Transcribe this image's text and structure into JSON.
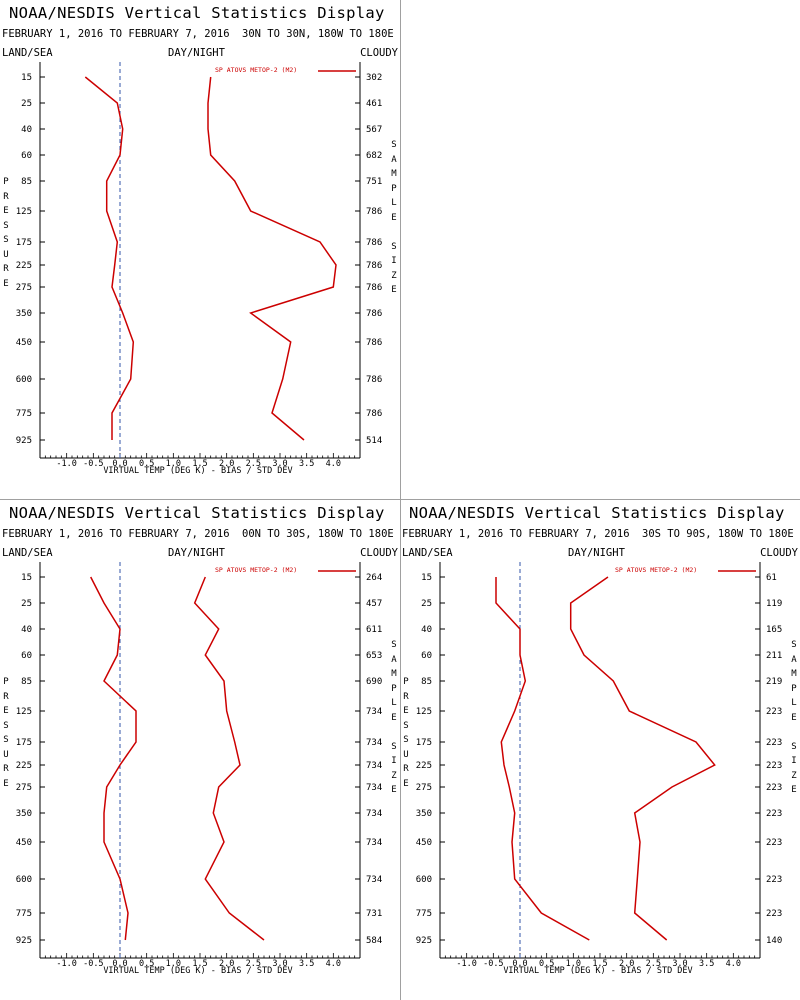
{
  "colors": {
    "line": "#cc0000",
    "axis": "#000000",
    "zero_line": "#3355aa",
    "divider": "#a0a0a0"
  },
  "panels": [
    {
      "title": "NOAA/NESDIS Vertical Statistics Display",
      "dates": "FEBRUARY 1, 2016 TO FEBRUARY 7, 2016",
      "region": "30N TO 30N, 180W TO 180E",
      "left_header": "LAND/SEA",
      "middle_header": "DAY/NIGHT",
      "right_header": "CLOUDY",
      "left_axis_title": "PRESSURE",
      "right_axis_title": "SAMPLE SIZE",
      "legend": "SP ATOVS METOP-2 (M2)",
      "x_axis_title": "VIRTUAL TEMP (DEG K) - BIAS / STD DEV",
      "x_tick_labels": [
        "-1.0",
        "-0.5",
        "0.0",
        "0.5",
        "1.0",
        "1.5",
        "2.0",
        "2.5",
        "3.0",
        "3.5",
        "4.0"
      ],
      "pressure_labels": [
        "15",
        "25",
        "40",
        "60",
        "85",
        "125",
        "175",
        "225",
        "275",
        "350",
        "450",
        "600",
        "775",
        "925"
      ],
      "sample_sizes": [
        "302",
        "461",
        "567",
        "682",
        "751",
        "786",
        "786",
        "786",
        "786",
        "786",
        "786",
        "786",
        "786",
        "514"
      ]
    },
    {
      "title": "NOAA/NESDIS Vertical Statistics Display",
      "dates": "FEBRUARY 1, 2016 TO FEBRUARY 7, 2016",
      "region": "00N TO 30S, 180W TO 180E",
      "left_header": "LAND/SEA",
      "middle_header": "DAY/NIGHT",
      "right_header": "CLOUDY",
      "left_axis_title": "PRESSURE",
      "right_axis_title": "SAMPLE SIZE",
      "legend": "SP ATOVS METOP-2 (M2)",
      "x_axis_title": "VIRTUAL TEMP (DEG K) - BIAS / STD DEV",
      "x_tick_labels": [
        "-1.0",
        "-0.5",
        "0.0",
        "0.5",
        "1.0",
        "1.5",
        "2.0",
        "2.5",
        "3.0",
        "3.5",
        "4.0"
      ],
      "pressure_labels": [
        "15",
        "25",
        "40",
        "60",
        "85",
        "125",
        "175",
        "225",
        "275",
        "350",
        "450",
        "600",
        "775",
        "925"
      ],
      "sample_sizes": [
        "264",
        "457",
        "611",
        "653",
        "690",
        "734",
        "734",
        "734",
        "734",
        "734",
        "734",
        "734",
        "731",
        "584"
      ]
    },
    {
      "title": "NOAA/NESDIS Vertical Statistics Display",
      "dates": "FEBRUARY 1, 2016 TO FEBRUARY 7, 2016",
      "region": "30S TO 90S, 180W TO 180E",
      "left_header": "LAND/SEA",
      "middle_header": "DAY/NIGHT",
      "right_header": "CLOUDY",
      "left_axis_title": "PRESSURE",
      "right_axis_title": "SAMPLE SIZE",
      "legend": "SP ATOVS METOP-2 (M2)",
      "x_axis_title": "VIRTUAL TEMP (DEG K) - BIAS / STD DEV",
      "x_tick_labels": [
        "-1.0",
        "-0.5",
        "0.0",
        "0.5",
        "1.0",
        "1.5",
        "2.0",
        "2.5",
        "3.0",
        "3.5",
        "4.0"
      ],
      "pressure_labels": [
        "15",
        "25",
        "40",
        "60",
        "85",
        "125",
        "175",
        "225",
        "275",
        "350",
        "450",
        "600",
        "775",
        "925"
      ],
      "sample_sizes": [
        "61",
        "119",
        "165",
        "211",
        "219",
        "223",
        "223",
        "223",
        "223",
        "223",
        "223",
        "223",
        "223",
        "140"
      ]
    }
  ],
  "chart_data": [
    {
      "type": "line",
      "title": "NOAA/NESDIS Vertical Statistics Display",
      "xlabel": "VIRTUAL TEMP (DEG K) - BIAS / STD DEV",
      "ylabel": "PRESSURE",
      "xlim": [
        -1.5,
        4.5
      ],
      "y_categories": [
        "15",
        "25",
        "40",
        "60",
        "85",
        "125",
        "175",
        "225",
        "275",
        "350",
        "450",
        "600",
        "775",
        "925"
      ],
      "legend_position": "top-right",
      "series": [
        {
          "name": "SP ATOVS METOP-2 (M2)",
          "role": "bias",
          "values": [
            -0.65,
            -0.05,
            0.05,
            0.0,
            -0.25,
            -0.25,
            -0.05,
            -0.1,
            -0.15,
            0.05,
            0.25,
            0.2,
            -0.15,
            -0.15
          ]
        },
        {
          "name": "SP ATOVS METOP-2 (M2)",
          "role": "std_dev",
          "values": [
            1.7,
            1.65,
            1.65,
            1.7,
            2.15,
            2.45,
            3.75,
            4.05,
            4.0,
            2.45,
            3.2,
            3.05,
            2.85,
            3.45
          ]
        }
      ],
      "sample_sizes": [
        302,
        461,
        567,
        682,
        751,
        786,
        786,
        786,
        786,
        786,
        786,
        786,
        786,
        514
      ]
    },
    {
      "type": "line",
      "title": "NOAA/NESDIS Vertical Statistics Display",
      "xlabel": "VIRTUAL TEMP (DEG K) - BIAS / STD DEV",
      "ylabel": "PRESSURE",
      "xlim": [
        -1.5,
        4.5
      ],
      "y_categories": [
        "15",
        "25",
        "40",
        "60",
        "85",
        "125",
        "175",
        "225",
        "275",
        "350",
        "450",
        "600",
        "775",
        "925"
      ],
      "legend_position": "top-right",
      "series": [
        {
          "name": "SP ATOVS METOP-2 (M2)",
          "role": "bias",
          "values": [
            -0.55,
            -0.3,
            0.0,
            -0.05,
            -0.3,
            0.3,
            0.3,
            0.0,
            -0.25,
            -0.3,
            -0.3,
            0.0,
            0.15,
            0.1
          ]
        },
        {
          "name": "SP ATOVS METOP-2 (M2)",
          "role": "std_dev",
          "values": [
            1.6,
            1.4,
            1.85,
            1.6,
            1.95,
            2.0,
            2.15,
            2.25,
            1.85,
            1.75,
            1.95,
            1.6,
            2.05,
            2.7
          ]
        }
      ],
      "sample_sizes": [
        264,
        457,
        611,
        653,
        690,
        734,
        734,
        734,
        734,
        734,
        734,
        734,
        731,
        584
      ]
    },
    {
      "type": "line",
      "title": "NOAA/NESDIS Vertical Statistics Display",
      "xlabel": "VIRTUAL TEMP (DEG K) - BIAS / STD DEV",
      "ylabel": "PRESSURE",
      "xlim": [
        -1.5,
        4.5
      ],
      "y_categories": [
        "15",
        "25",
        "40",
        "60",
        "85",
        "125",
        "175",
        "225",
        "275",
        "350",
        "450",
        "600",
        "775",
        "925"
      ],
      "legend_position": "top-right",
      "series": [
        {
          "name": "SP ATOVS METOP-2 (M2)",
          "role": "bias",
          "values": [
            -0.45,
            -0.45,
            0.0,
            0.0,
            0.1,
            -0.1,
            -0.35,
            -0.3,
            -0.2,
            -0.1,
            -0.15,
            -0.1,
            0.4,
            1.3
          ]
        },
        {
          "name": "SP ATOVS METOP-2 (M2)",
          "role": "std_dev",
          "values": [
            1.65,
            0.95,
            0.95,
            1.2,
            1.75,
            2.05,
            3.3,
            3.65,
            2.85,
            2.15,
            2.25,
            2.2,
            2.15,
            2.75
          ]
        }
      ],
      "sample_sizes": [
        61,
        119,
        165,
        211,
        219,
        223,
        223,
        223,
        223,
        223,
        223,
        223,
        223,
        140
      ]
    }
  ]
}
